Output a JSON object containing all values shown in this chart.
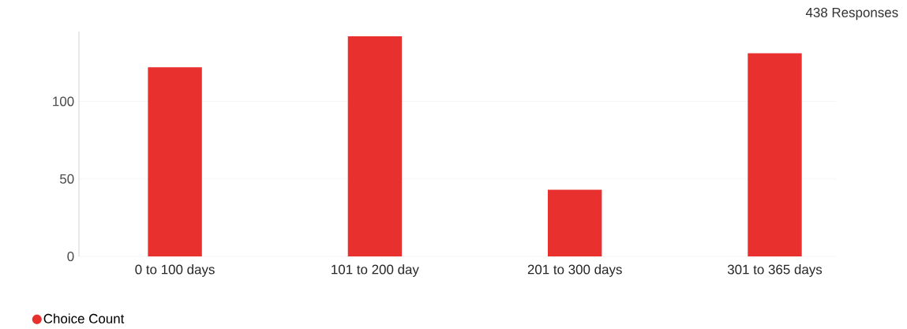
{
  "chart_data": {
    "type": "bar",
    "annotations": [
      "438 Responses"
    ],
    "categories": [
      "0 to 100 days",
      "101 to 200 day",
      "201 to 300 days",
      "301 to 365 days"
    ],
    "series": [
      {
        "name": "Choice Count",
        "color": "#e8302e",
        "values": [
          122,
          142,
          43,
          131
        ]
      }
    ],
    "ylim": [
      0,
      145
    ],
    "yticks": [
      0,
      50,
      100
    ],
    "grid": "y",
    "legend": "bottom left"
  }
}
